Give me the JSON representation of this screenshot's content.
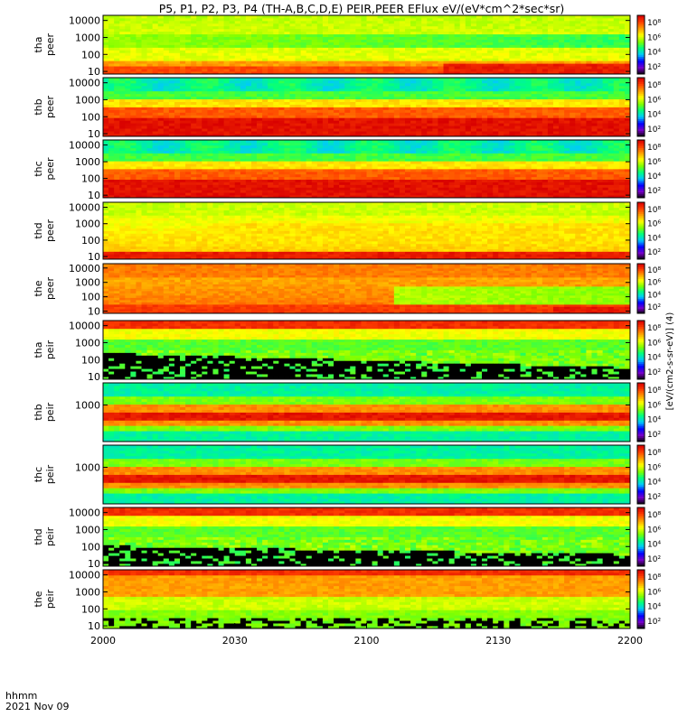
{
  "chart_data": {
    "type": "heatmap",
    "title": "P5, P1, P2, P3, P4 (TH-A,B,C,D,E) PEIR,PEER EFlux eV/(eV*cm^2*sec*sr)",
    "x_ticks": [
      "2000",
      "2030",
      "2100",
      "2130",
      "2200"
    ],
    "x_label_time": "hhmm",
    "x_label_date": "2021 Nov 09",
    "x_range_minutes": [
      0,
      120
    ],
    "colorbar_label": "[eV/(cm2-s-sr-eV)] (4)",
    "colorbar_ticks": [
      "10⁸",
      "10⁶",
      "10⁴",
      "10²"
    ],
    "panels": [
      {
        "probe": "tha",
        "instrument": "peer",
        "y_ticks": [
          "10000",
          "1000",
          "100",
          "10"
        ],
        "log_y": true,
        "y_range_eV": [
          7,
          20000
        ]
      },
      {
        "probe": "thb",
        "instrument": "peer",
        "y_ticks": [
          "10000",
          "1000",
          "100",
          "10"
        ],
        "log_y": true,
        "y_range_eV": [
          7,
          20000
        ]
      },
      {
        "probe": "thc",
        "instrument": "peer",
        "y_ticks": [
          "10000",
          "1000",
          "100",
          "10"
        ],
        "log_y": true,
        "y_range_eV": [
          7,
          20000
        ]
      },
      {
        "probe": "thd",
        "instrument": "peer",
        "y_ticks": [
          "10000",
          "1000",
          "100",
          "10"
        ],
        "log_y": true,
        "y_range_eV": [
          7,
          20000
        ]
      },
      {
        "probe": "the",
        "instrument": "peer",
        "y_ticks": [
          "10000",
          "1000",
          "100",
          "10"
        ],
        "log_y": true,
        "y_range_eV": [
          7,
          20000
        ]
      },
      {
        "probe": "tha",
        "instrument": "peir",
        "y_ticks": [
          "10000",
          "1000",
          "100",
          "10"
        ],
        "log_y": true,
        "y_range_eV": [
          7,
          20000
        ]
      },
      {
        "probe": "thb",
        "instrument": "peir",
        "y_ticks": [
          "1000"
        ],
        "log_y": true,
        "y_range_eV": [
          7,
          20000
        ]
      },
      {
        "probe": "thc",
        "instrument": "peir",
        "y_ticks": [
          "1000"
        ],
        "log_y": true,
        "y_range_eV": [
          7,
          20000
        ]
      },
      {
        "probe": "thd",
        "instrument": "peir",
        "y_ticks": [
          "10000",
          "1000",
          "100",
          "10"
        ],
        "log_y": true,
        "y_range_eV": [
          7,
          20000
        ]
      },
      {
        "probe": "the",
        "instrument": "peir",
        "y_ticks": [
          "10000",
          "1000",
          "100",
          "10"
        ],
        "log_y": true,
        "y_range_eV": [
          7,
          20000
        ]
      }
    ],
    "colormap": [
      "#000000",
      "#7a00c8",
      "#0000ff",
      "#00c8ff",
      "#00ff80",
      "#80ff00",
      "#ffff00",
      "#ffa000",
      "#ff4000",
      "#d80000"
    ]
  }
}
